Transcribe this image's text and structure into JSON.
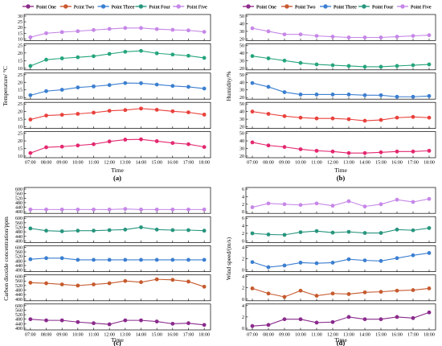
{
  "chart_data": [
    {
      "type": "line",
      "panel_label": "(a)",
      "xlabel": "Time",
      "ylabel": "Temperature/ °C",
      "categories": [
        "07:00",
        "08:00",
        "09:00",
        "10:00",
        "11:00",
        "12:00",
        "13:00",
        "14:00",
        "15:00",
        "16:00",
        "17:00",
        "18:00"
      ],
      "legend_position": "top",
      "series": [
        {
          "name": "Point One",
          "color": "#e3286f",
          "ylim": [
            10,
            25
          ],
          "ticks": [
            10,
            15,
            20,
            25
          ],
          "values": [
            12.0,
            15.8,
            16.2,
            17.0,
            17.8,
            19.6,
            20.8,
            21.0,
            19.8,
            18.6,
            17.8,
            16.0
          ]
        },
        {
          "name": "Point Two",
          "color": "#e8413c",
          "ylim": [
            10,
            25
          ],
          "ticks": [
            10,
            15,
            20,
            25
          ],
          "values": [
            14.8,
            17.4,
            17.9,
            18.5,
            19.3,
            20.5,
            21.0,
            22.0,
            21.2,
            20.2,
            19.5,
            18.0
          ]
        },
        {
          "name": "Point Three",
          "color": "#3b7fd0",
          "ylim": [
            10,
            25
          ],
          "ticks": [
            10,
            15,
            20,
            25
          ],
          "values": [
            11.5,
            14.2,
            15.1,
            16.6,
            17.3,
            18.2,
            19.5,
            19.4,
            18.5,
            17.6,
            17.0,
            15.9
          ]
        },
        {
          "name": "Point Four",
          "color": "#27a57e",
          "ylim": [
            10,
            25
          ],
          "ticks": [
            10,
            15,
            20,
            25
          ],
          "values": [
            11.5,
            15.6,
            16.5,
            17.2,
            17.9,
            19.4,
            20.8,
            21.4,
            19.8,
            19.0,
            18.2,
            16.8
          ]
        },
        {
          "name": "Point Five",
          "color": "#c687e8",
          "ylim": [
            10,
            30
          ],
          "ticks": [
            10,
            15,
            20,
            25,
            30
          ],
          "values": [
            11.5,
            15.0,
            16.0,
            16.8,
            17.8,
            18.8,
            19.6,
            19.6,
            18.6,
            18.0,
            17.5,
            16.2
          ]
        }
      ]
    },
    {
      "type": "line",
      "panel_label": "(b)",
      "xlabel": "Time",
      "ylabel": "Humidity/%",
      "categories": [
        "07:00",
        "08:00",
        "09:00",
        "10:00",
        "11:00",
        "12:00",
        "13:00",
        "14:00",
        "15:00",
        "16:00",
        "17:00",
        "18:00"
      ],
      "legend_position": "top",
      "series": [
        {
          "name": "Point One",
          "color": "#e3286f",
          "ylim": [
            20,
            50
          ],
          "ticks": [
            20,
            30,
            40,
            50
          ],
          "values": [
            38,
            34,
            32,
            29,
            27,
            26,
            24,
            24,
            25,
            26,
            26,
            27
          ]
        },
        {
          "name": "Point Two",
          "color": "#e8413c",
          "ylim": [
            20,
            50
          ],
          "ticks": [
            20,
            30,
            40,
            50
          ],
          "values": [
            40,
            37,
            34,
            32,
            31,
            31,
            30,
            28,
            29,
            32,
            33,
            32
          ]
        },
        {
          "name": "Point Three",
          "color": "#3b7fd0",
          "ylim": [
            20,
            50
          ],
          "ticks": [
            20,
            30,
            40,
            50
          ],
          "values": [
            39,
            34,
            27,
            24,
            24,
            24,
            24,
            23,
            23,
            21,
            21,
            22
          ]
        },
        {
          "name": "Point Four",
          "color": "#27a57e",
          "ylim": [
            20,
            50
          ],
          "ticks": [
            20,
            30,
            40,
            50
          ],
          "values": [
            36,
            33,
            30,
            27,
            25,
            24,
            23,
            22,
            22,
            23,
            24,
            25
          ]
        },
        {
          "name": "Point Five",
          "color": "#c687e8",
          "ylim": [
            20,
            50
          ],
          "ticks": [
            20,
            30,
            40,
            50
          ],
          "values": [
            34,
            30,
            26,
            26,
            24,
            23,
            22,
            22,
            22,
            23,
            24,
            25
          ]
        }
      ]
    },
    {
      "type": "line",
      "panel_label": "(c)",
      "xlabel": "Time",
      "ylabel": "Carbon dioxide concentration/ppm",
      "categories": [
        "07:00",
        "08:00",
        "09:00",
        "10:00",
        "11:00",
        "12:00",
        "13:00",
        "14:00",
        "15:00",
        "16:00",
        "17:00",
        "18:00"
      ],
      "legend_position": "top",
      "series": [
        {
          "name": "Point One",
          "color": "#8a2a8c",
          "ylim": [
            400,
            600
          ],
          "ticks": [
            400,
            440,
            480,
            520,
            560,
            600
          ],
          "values": [
            480,
            470,
            470,
            455,
            445,
            435,
            470,
            470,
            460,
            440,
            445,
            430
          ]
        },
        {
          "name": "Point Two",
          "color": "#c65a2e",
          "ylim": [
            400,
            600
          ],
          "ticks": [
            400,
            440,
            480,
            520,
            560,
            600
          ],
          "values": [
            545,
            540,
            530,
            520,
            530,
            540,
            560,
            550,
            575,
            570,
            555,
            510
          ]
        },
        {
          "name": "Point Three",
          "color": "#3b7fd0",
          "ylim": [
            400,
            600
          ],
          "ticks": [
            400,
            440,
            480,
            520,
            560,
            600
          ],
          "values": [
            495,
            505,
            505,
            490,
            490,
            490,
            490,
            490,
            490,
            490,
            490,
            490
          ]
        },
        {
          "name": "Point Four",
          "color": "#27957e",
          "ylim": [
            400,
            600
          ],
          "ticks": [
            400,
            440,
            480,
            520,
            560,
            600
          ],
          "values": [
            510,
            490,
            485,
            490,
            490,
            495,
            500,
            520,
            500,
            495,
            495,
            490
          ]
        },
        {
          "name": "Point Five",
          "color": "#c687e8",
          "ylim": [
            400,
            600
          ],
          "ticks": [
            400,
            440,
            480,
            520,
            560,
            600
          ],
          "values": [
            420,
            420,
            420,
            420,
            420,
            420,
            425,
            420,
            420,
            420,
            420,
            420
          ]
        }
      ]
    },
    {
      "type": "line",
      "panel_label": "(d)",
      "xlabel": "Time",
      "ylabel": "Wind speed/(m/s)",
      "categories": [
        "07:00",
        "08:00",
        "09:00",
        "10:00",
        "11:00",
        "12:00",
        "13:00",
        "14:00",
        "15:00",
        "16:00",
        "17:00",
        "18:00"
      ],
      "legend_position": "top",
      "series": [
        {
          "name": "Point One",
          "color": "#8a2a8c",
          "ylim": [
            0,
            4
          ],
          "ticks": [
            0,
            2,
            4
          ],
          "values": [
            0.4,
            0.6,
            1.6,
            1.6,
            1.0,
            1.1,
            2.0,
            1.6,
            1.6,
            2.0,
            1.8,
            2.8
          ]
        },
        {
          "name": "Point Two",
          "color": "#c65a2e",
          "ylim": [
            0,
            4
          ],
          "ticks": [
            0,
            2,
            4
          ],
          "values": [
            1.9,
            1.0,
            0.4,
            1.5,
            0.6,
            1.0,
            0.9,
            1.2,
            1.3,
            1.5,
            1.6,
            1.9
          ]
        },
        {
          "name": "Point Three",
          "color": "#3b7fd0",
          "ylim": [
            0,
            4
          ],
          "ticks": [
            0,
            2,
            4
          ],
          "values": [
            1.4,
            0.5,
            0.8,
            1.3,
            1.2,
            1.3,
            1.9,
            1.7,
            1.6,
            2.1,
            2.6,
            3.0
          ]
        },
        {
          "name": "Point Four",
          "color": "#27957e",
          "ylim": [
            0,
            6
          ],
          "ticks": [
            0,
            2,
            4,
            6
          ],
          "values": [
            2.0,
            1.7,
            1.6,
            2.3,
            2.6,
            2.2,
            2.4,
            2.1,
            2.1,
            3.0,
            2.8,
            3.4
          ]
        },
        {
          "name": "Point Five",
          "color": "#c687e8",
          "ylim": [
            0,
            6
          ],
          "ticks": [
            0,
            2,
            4,
            6
          ],
          "values": [
            1.2,
            2.2,
            2.0,
            1.8,
            2.2,
            1.6,
            2.8,
            1.4,
            2.0,
            3.2,
            2.6,
            3.4
          ]
        }
      ]
    }
  ]
}
